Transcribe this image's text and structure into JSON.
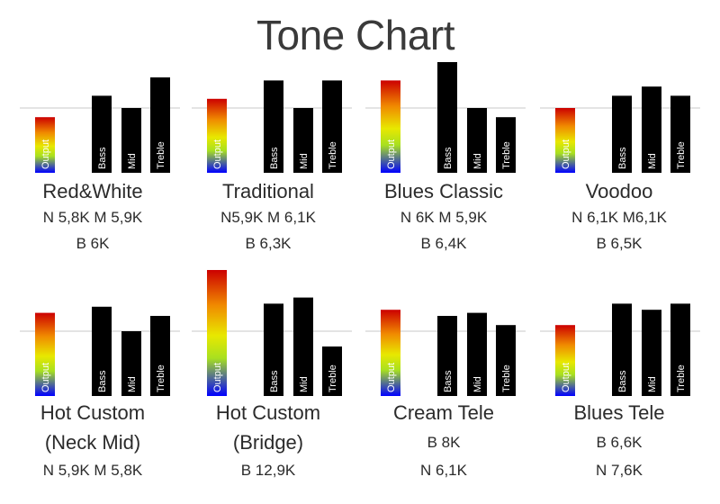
{
  "title": "Tone Chart",
  "colors": {
    "bar": "#000000",
    "reference_line": "#c8c8c8",
    "output_gradient": [
      "#cc0000",
      "#f08a00",
      "#e8e800",
      "#a8e020",
      "#0000ff"
    ]
  },
  "chart_data": [
    {
      "type": "bar",
      "name": "Red&White",
      "specs": [
        "N 5,8K  M 5,9K",
        "B 6K"
      ],
      "categories": [
        "Output",
        "Bass",
        "Mid",
        "Treble"
      ],
      "values": [
        -3,
        4,
        0,
        10
      ]
    },
    {
      "type": "bar",
      "name": "Traditional",
      "specs": [
        "N5,9K  M 6,1K",
        "B 6,3K"
      ],
      "categories": [
        "Output",
        "Bass",
        "Mid",
        "Treble"
      ],
      "values": [
        3,
        9,
        0,
        9
      ]
    },
    {
      "type": "bar",
      "name": "Blues Classic",
      "specs": [
        "N 6K  M 5,9K",
        "B 6,4K"
      ],
      "categories": [
        "Output",
        "Bass",
        "Mid",
        "Treble"
      ],
      "values": [
        9,
        15,
        0,
        -3
      ]
    },
    {
      "type": "bar",
      "name": "Voodoo",
      "specs": [
        "N 6,1K  M6,1K",
        "B 6,5K"
      ],
      "categories": [
        "Output",
        "Bass",
        "Mid",
        "Treble"
      ],
      "values": [
        0,
        4,
        7,
        4
      ]
    },
    {
      "type": "bar",
      "name": "Hot Custom",
      "subname": "(Neck Mid)",
      "specs": [
        "N 5,9K  M 5,8K"
      ],
      "categories": [
        "Output",
        "Bass",
        "Mid",
        "Treble"
      ],
      "values": [
        6,
        8,
        0,
        5
      ]
    },
    {
      "type": "bar",
      "name": "Hot Custom",
      "subname": "(Bridge)",
      "specs": [
        "B 12,9K"
      ],
      "categories": [
        "Output",
        "Bass",
        "Mid",
        "Treble"
      ],
      "values": [
        20,
        9,
        11,
        -5
      ]
    },
    {
      "type": "bar",
      "name": "Cream Tele",
      "specs": [
        "B 8K",
        "N 6,1K"
      ],
      "categories": [
        "Output",
        "Bass",
        "Mid",
        "Treble"
      ],
      "values": [
        7,
        5,
        6,
        2
      ]
    },
    {
      "type": "bar",
      "name": "Blues Tele",
      "specs": [
        "B 6,6K",
        "N 7,6K"
      ],
      "categories": [
        "Output",
        "Bass",
        "Mid",
        "Treble"
      ],
      "values": [
        2,
        9,
        7,
        9
      ]
    }
  ]
}
